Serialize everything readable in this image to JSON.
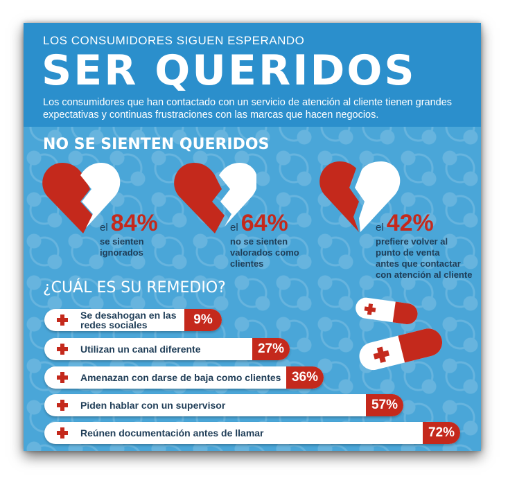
{
  "header": {
    "supertitle": "LOS CONSUMIDORES SIGUEN ESPERANDO",
    "title": "SER QUERIDOS",
    "intro": "Los consumidores que han contactado con un servicio de atención al cliente tienen grandes expectativas y continuas frustraciones con las marcas que hacen negocios."
  },
  "section1": {
    "title": "NO SE SIENTEN QUERIDOS",
    "stats": [
      {
        "prefix": "el",
        "value": "84%",
        "description": "se sienten\nignorados",
        "fraction": 0.84
      },
      {
        "prefix": "el",
        "value": "64%",
        "description": "no se sienten\nvalorados como\nclientes",
        "fraction": 0.64
      },
      {
        "prefix": "el",
        "value": "42%",
        "description": "prefiere volver al\npunto de venta\nantes que contactar\ncon atención al cliente",
        "fraction": 0.42
      }
    ]
  },
  "section2": {
    "title": "¿CUÁL ES SU REMEDIO?",
    "items": [
      {
        "label": "Se desahogan en las\nredes sociales",
        "value": "9%",
        "percent": 9
      },
      {
        "label": "Utilizan un canal diferente",
        "value": "27%",
        "percent": 27
      },
      {
        "label": "Amenazan con darse de baja como clientes",
        "value": "36%",
        "percent": 36
      },
      {
        "label": "Piden hablar con un supervisor",
        "value": "57%",
        "percent": 57
      },
      {
        "label": "Reúnen documentación antes de llamar",
        "value": "72%",
        "percent": 72
      }
    ]
  },
  "colors": {
    "background": "#4aa6d8",
    "header": "#2b8fcc",
    "accent": "#c4291c",
    "text_dark": "#1f3d57"
  },
  "icons": [
    "broken-heart-icon",
    "medical-cross-icon",
    "pill-icon"
  ]
}
